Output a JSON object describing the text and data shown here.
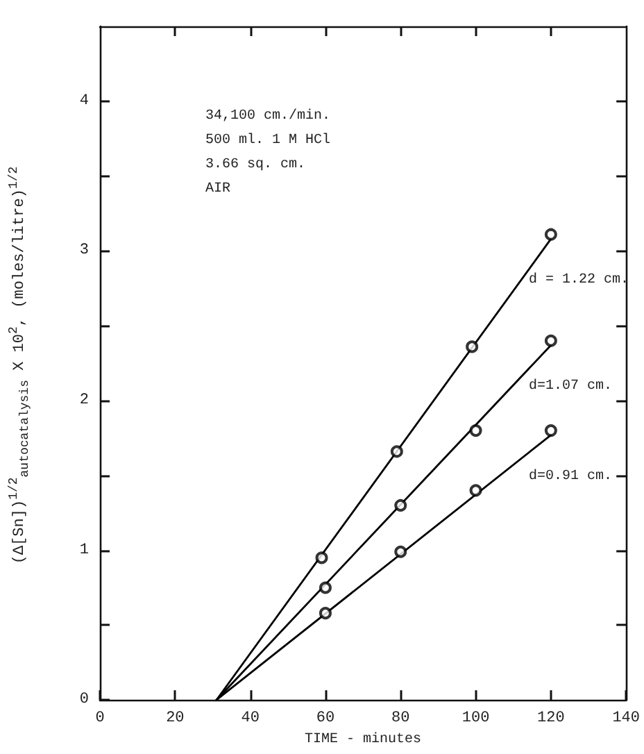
{
  "chart_data": {
    "type": "scatter",
    "xlabel": "TIME - minutes",
    "ylabel": "(Δ[Sn])$^{1/2}$$_{autocatalysis}$ X 10$^{2}$, (moles/litre)$^{1/2}$",
    "xlim": [
      0,
      140
    ],
    "xticks": [
      0,
      20,
      40,
      60,
      80,
      100,
      120,
      140
    ],
    "ylim": [
      0,
      4.5
    ],
    "yticks": [
      0,
      {
        "value": 0.5,
        "label": null
      },
      1,
      {
        "value": 1.5,
        "label": null
      },
      2,
      {
        "value": 2.5,
        "label": null
      },
      3,
      {
        "value": 3.5,
        "label": null
      },
      4
    ],
    "grid": false,
    "legend": false,
    "marker": "circle",
    "series": [
      {
        "color": "#000000",
        "x": [
          59,
          79,
          99,
          120
        ],
        "values": [
          0.95,
          1.66,
          2.36,
          3.11
        ]
      },
      {
        "color": "#000000",
        "x": [
          60,
          80,
          100,
          120
        ],
        "values": [
          0.75,
          1.3,
          1.8,
          2.4
        ]
      },
      {
        "color": "#000000",
        "x": [
          60,
          80,
          100,
          120
        ],
        "values": [
          0.58,
          0.99,
          1.4,
          1.8
        ]
      },
      {
        "type": "line",
        "name": "d = 1.22 cm.",
        "color": "#000000",
        "marker": "none",
        "x": [
          31,
          120
        ],
        "values": [
          0,
          3.08
        ]
      },
      {
        "type": "line",
        "name": "d=1.07 cm.",
        "color": "#000000",
        "marker": "none",
        "x": [
          31,
          120
        ],
        "values": [
          0,
          2.37
        ]
      },
      {
        "type": "line",
        "name": "d=0.91 cm.",
        "color": "#000000",
        "marker": "none",
        "x": [
          31,
          120
        ],
        "values": [
          0,
          1.77
        ]
      }
    ],
    "annotations": [
      "34,100 cm./min.",
      "500 ml. 1 M HCl",
      "3.66 sq. cm.",
      "AIR"
    ]
  }
}
